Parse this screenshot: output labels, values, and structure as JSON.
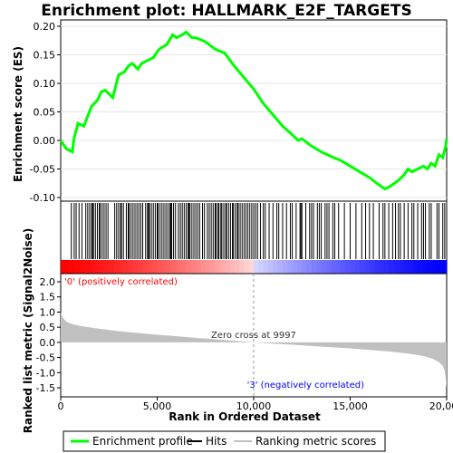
{
  "chart_data": [
    {
      "type": "line",
      "title": "Enrichment plot: HALLMARK_E2F_TARGETS",
      "ylabel": "Enrichment score (ES)",
      "ylim": [
        -0.1,
        0.2
      ],
      "yticks": [
        "0.20",
        "0.15",
        "0.10",
        "0.05",
        "0.00",
        "-0.05",
        "-0.10"
      ],
      "series": [
        {
          "name": "Enrichment profile",
          "color": "#00ff00",
          "x": [
            0,
            300,
            600,
            700,
            900,
            1200,
            1600,
            1900,
            2100,
            2300,
            2700,
            3000,
            3300,
            3500,
            3700,
            4000,
            4200,
            4500,
            4800,
            5100,
            5500,
            5800,
            6000,
            6300,
            6500,
            6800,
            7000,
            7500,
            8000,
            8500,
            9000,
            9500,
            10000,
            10500,
            11000,
            11500,
            12000,
            12300,
            12500,
            13000,
            13500,
            14000,
            14500,
            15000,
            15500,
            16000,
            16500,
            16800,
            17000,
            17300,
            17500,
            17800,
            18000,
            18200,
            18500,
            18800,
            19000,
            19200,
            19400,
            19600,
            19800,
            19950,
            20000
          ],
          "y": [
            0.0,
            -0.015,
            -0.02,
            0.005,
            0.03,
            0.025,
            0.06,
            0.07,
            0.085,
            0.088,
            0.075,
            0.115,
            0.12,
            0.13,
            0.135,
            0.125,
            0.135,
            0.14,
            0.145,
            0.16,
            0.168,
            0.185,
            0.18,
            0.185,
            0.19,
            0.18,
            0.18,
            0.173,
            0.16,
            0.153,
            0.13,
            0.11,
            0.09,
            0.065,
            0.045,
            0.025,
            0.01,
            0.0,
            0.003,
            -0.01,
            -0.02,
            -0.028,
            -0.035,
            -0.045,
            -0.055,
            -0.065,
            -0.078,
            -0.085,
            -0.082,
            -0.075,
            -0.07,
            -0.06,
            -0.05,
            -0.055,
            -0.05,
            -0.045,
            -0.05,
            -0.04,
            -0.045,
            -0.025,
            -0.03,
            -0.01,
            0.003
          ]
        }
      ]
    },
    {
      "type": "scatter",
      "series": [
        {
          "name": "Hits",
          "x": [
            550,
            700,
            800,
            950,
            1100,
            1300,
            1400,
            1500,
            1600,
            1650,
            1700,
            1800,
            1900,
            2000,
            2050,
            2150,
            2250,
            2350,
            2450,
            2800,
            2900,
            3000,
            3100,
            3150,
            3250,
            3400,
            3500,
            3550,
            3650,
            3750,
            3850,
            3950,
            4050,
            4150,
            4250,
            4400,
            4500,
            4550,
            4600,
            4700,
            4800,
            4900,
            5000,
            5050,
            5150,
            5250,
            5350,
            5450,
            5550,
            5650,
            5700,
            5750,
            5850,
            5950,
            6100,
            6200,
            6300,
            6400,
            6500,
            6600,
            6650,
            6700,
            6800,
            6900,
            7000,
            7100,
            7200,
            7350,
            7450,
            7600,
            7700,
            7800,
            7900,
            8000,
            8050,
            8150,
            8200,
            8300,
            8350,
            8450,
            8550,
            8600,
            8700,
            8800,
            8900,
            8950,
            9050,
            9150,
            9200,
            9300,
            9400,
            9500,
            9600,
            9700,
            9800,
            9900,
            10000,
            10100,
            10200,
            10350,
            10500,
            10600,
            10800,
            11000,
            11200,
            11300,
            11500,
            11700,
            11900,
            12000,
            12200,
            12400,
            12450,
            12500,
            12700,
            12900,
            13000,
            13100,
            13300,
            13400,
            13500,
            13700,
            13800,
            13900,
            14100,
            14200,
            14400,
            14700,
            15000,
            15300,
            15600,
            15800,
            16000,
            16200,
            16500,
            16700,
            16800,
            17000,
            17200,
            17350,
            17500,
            17600,
            17800,
            18000,
            18200,
            18300,
            18500,
            18700,
            18800,
            18900,
            19100,
            19200,
            19500,
            19600,
            19800,
            19900
          ]
        }
      ]
    },
    {
      "type": "area",
      "ylabel": "Ranked list metric (Signal2Noise)",
      "xlabel": "Rank in Ordered Dataset",
      "ylim": [
        -1.6,
        2.2
      ],
      "xlim": [
        0,
        20000
      ],
      "yticks": [
        "2.0",
        "1.5",
        "1.0",
        "0.5",
        "0.0",
        "-0.5",
        "-1.0",
        "-1.5"
      ],
      "xticks": [
        "0",
        "5,000",
        "10,000",
        "15,000",
        "20,000"
      ],
      "xtick_values": [
        0,
        5000,
        10000,
        15000,
        20000
      ],
      "series": [
        {
          "name": "Ranking metric scores",
          "color": "#c0c0c0",
          "x": [
            0,
            50,
            150,
            300,
            600,
            1000,
            2000,
            3000,
            4000,
            5000,
            6000,
            7000,
            8000,
            9000,
            9997,
            11000,
            12000,
            13000,
            14000,
            15000,
            16000,
            17000,
            18000,
            18800,
            19300,
            19600,
            19800,
            19900,
            19950,
            20000
          ],
          "y": [
            1.0,
            0.9,
            0.78,
            0.68,
            0.6,
            0.54,
            0.45,
            0.37,
            0.31,
            0.25,
            0.2,
            0.15,
            0.1,
            0.05,
            0.0,
            -0.04,
            -0.08,
            -0.12,
            -0.16,
            -0.2,
            -0.25,
            -0.3,
            -0.37,
            -0.45,
            -0.55,
            -0.65,
            -0.78,
            -0.95,
            -1.2,
            -1.5
          ]
        }
      ],
      "zero_cross_label": "Zero cross at 9997",
      "zero_cross": 9997,
      "pos_label": "'0' (positively correlated)",
      "pos_color": "#ff0000",
      "neg_label": "'3' (negatively correlated)",
      "neg_color": "#0000ff"
    }
  ],
  "legend": {
    "items": [
      {
        "label": "Enrichment profile",
        "color": "#00ff00"
      },
      {
        "label": "Hits",
        "color": "#000000"
      },
      {
        "label": "Ranking metric scores",
        "color": "#c0c0c0"
      }
    ]
  }
}
